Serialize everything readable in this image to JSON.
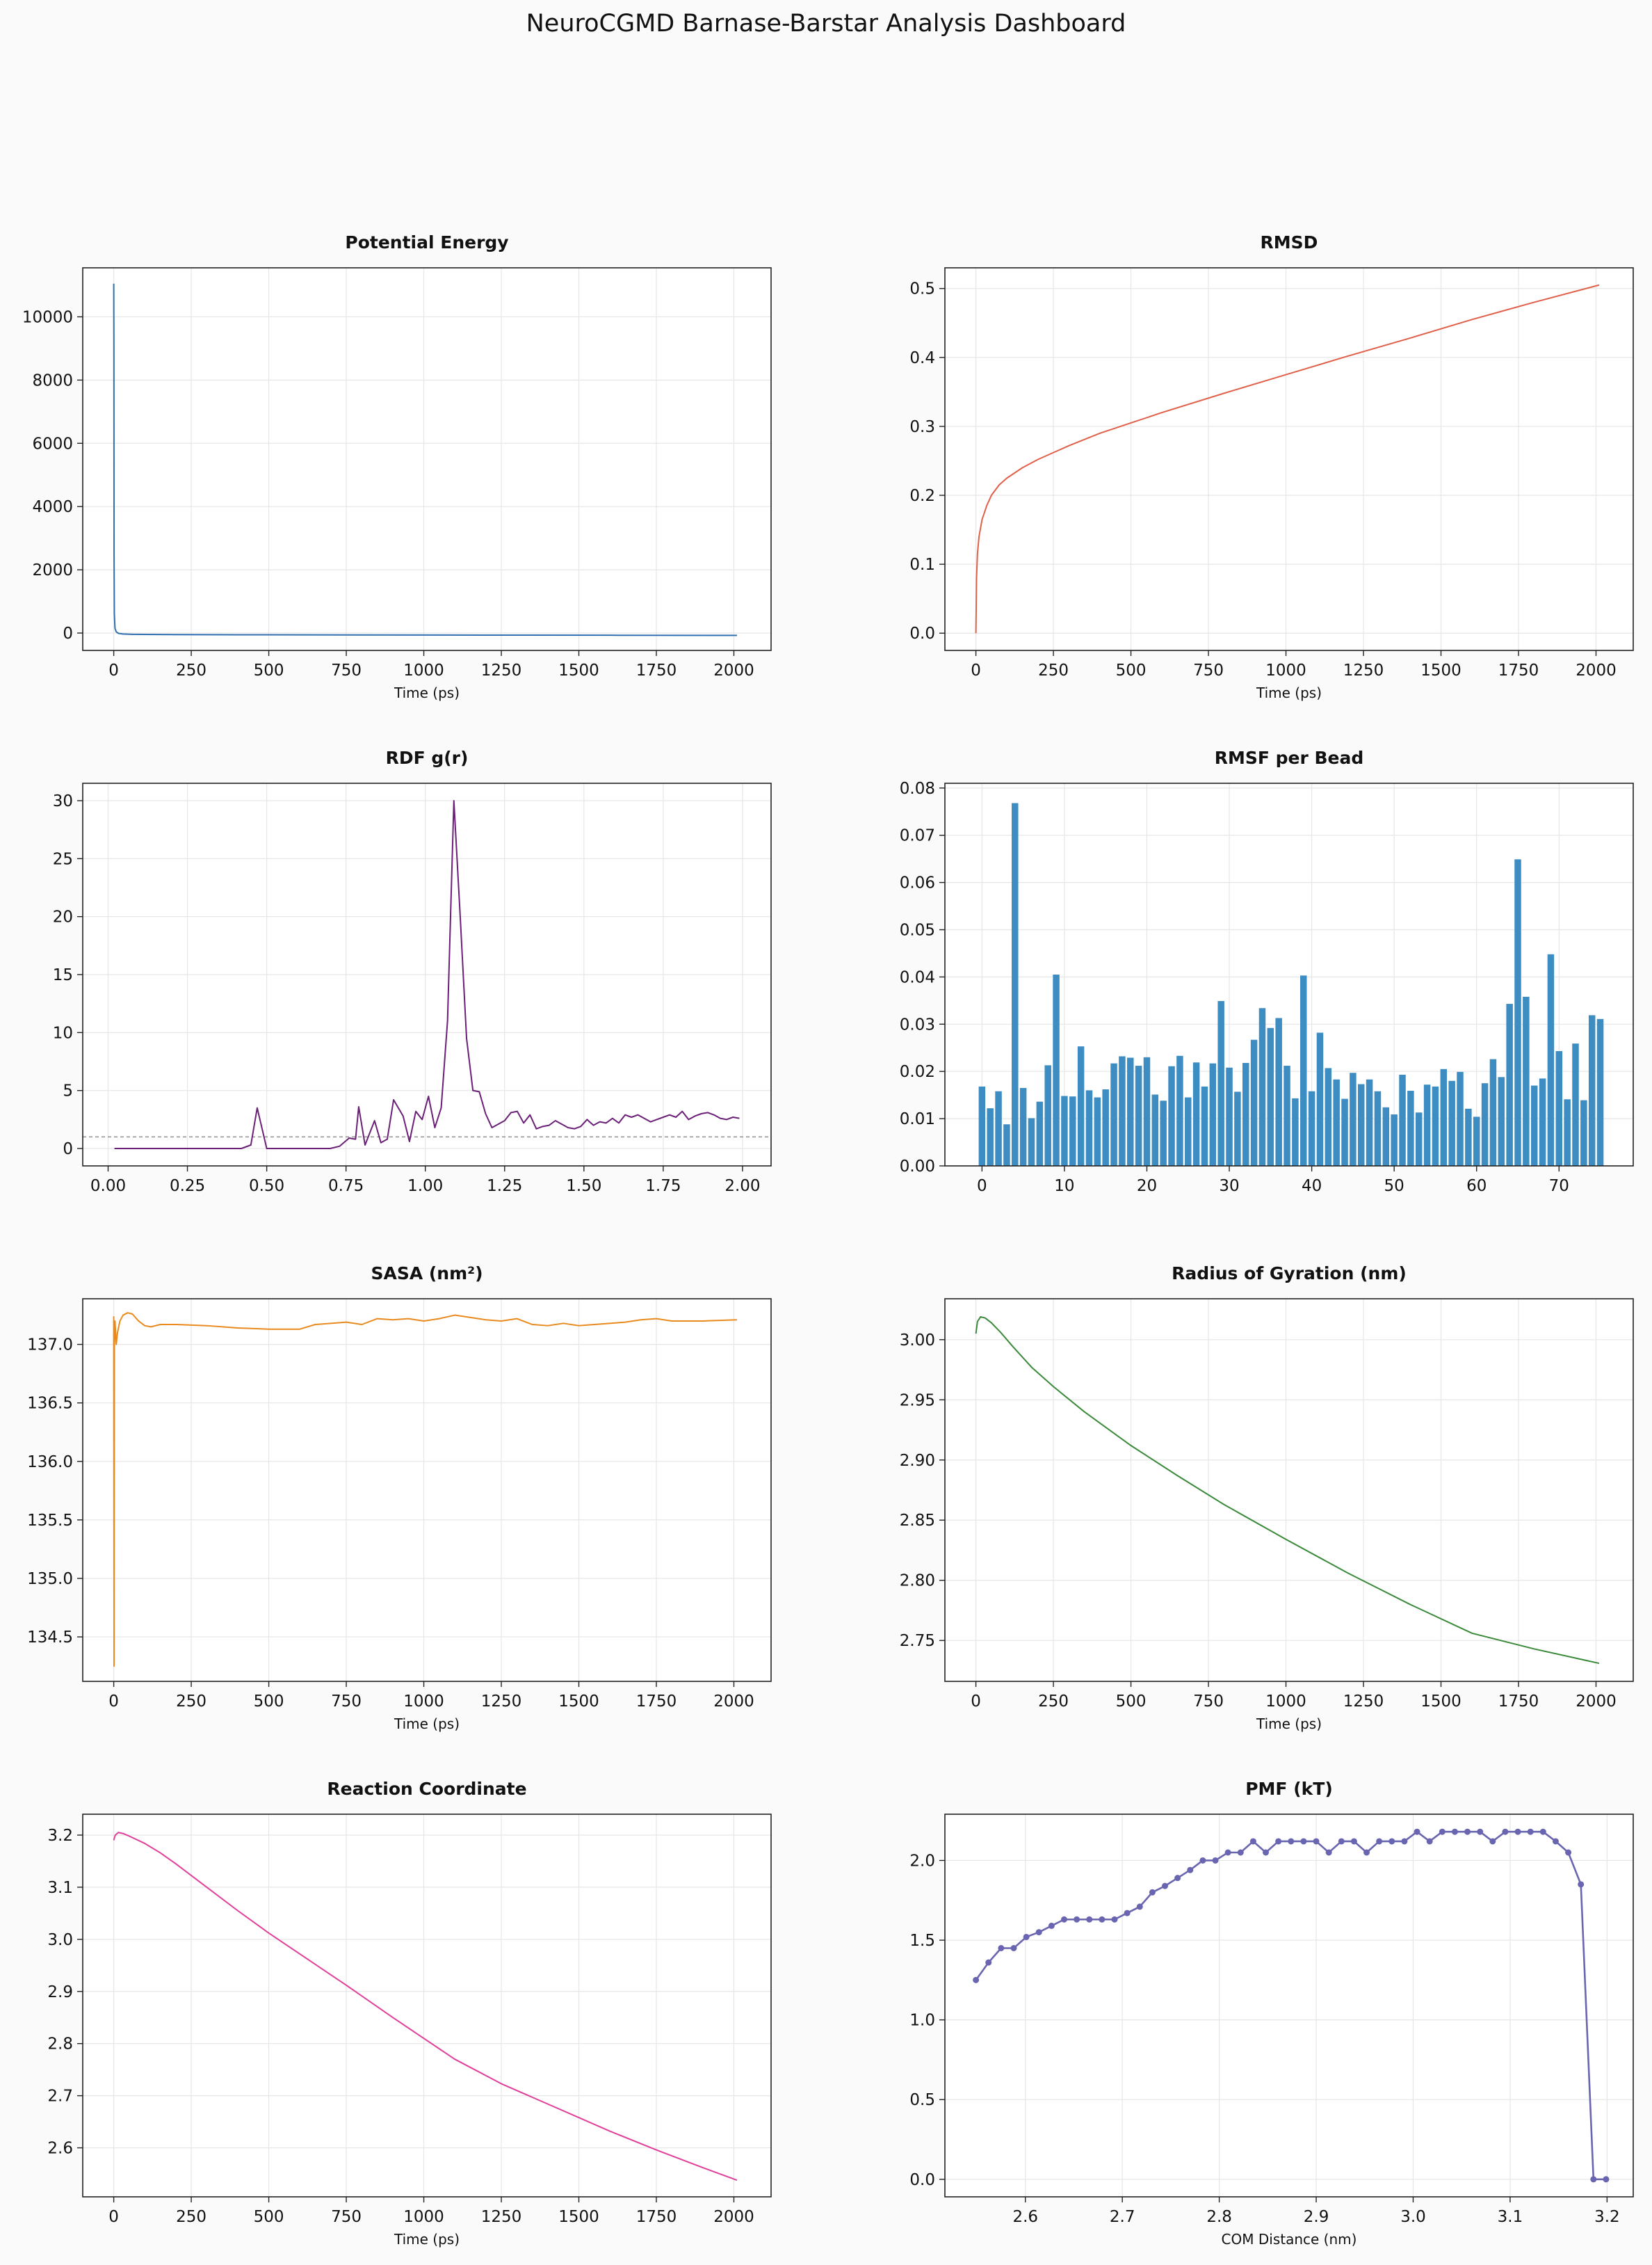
{
  "suptitle": "NeuroCGMD Barnase-Barstar Analysis Dashboard",
  "chart_data": [
    {
      "id": "potential-energy",
      "type": "line",
      "title": "Potential Energy",
      "xlabel": "Time (ps)",
      "ylabel": "",
      "color": "#2f6fb0",
      "xlim": [
        -100,
        2120
      ],
      "ylim": [
        -550,
        11550
      ],
      "xticks": [
        0,
        250,
        500,
        750,
        1000,
        1250,
        1500,
        1750,
        2000
      ],
      "xtick_labels": [
        "0",
        "250",
        "500",
        "750",
        "1000",
        "1250",
        "1500",
        "1750",
        "2000"
      ],
      "yticks": [
        0,
        2000,
        4000,
        6000,
        8000,
        10000
      ],
      "ytick_labels": [
        "0",
        "2000",
        "4000",
        "6000",
        "8000",
        "10000"
      ],
      "x": [
        0,
        0.5,
        1,
        2,
        4,
        8,
        15,
        30,
        60,
        100,
        200,
        400,
        800,
        1200,
        1600,
        2010
      ],
      "y": [
        11050,
        9000,
        2500,
        600,
        150,
        40,
        -10,
        -30,
        -40,
        -45,
        -50,
        -55,
        -60,
        -65,
        -70,
        -75
      ]
    },
    {
      "id": "rmsd",
      "type": "line",
      "title": "RMSD",
      "xlabel": "Time (ps)",
      "ylabel": "",
      "color": "#e0604a",
      "xlim": [
        -100,
        2120
      ],
      "ylim": [
        -0.025,
        0.53
      ],
      "xticks": [
        0,
        250,
        500,
        750,
        1000,
        1250,
        1500,
        1750,
        2000
      ],
      "xtick_labels": [
        "0",
        "250",
        "500",
        "750",
        "1000",
        "1250",
        "1500",
        "1750",
        "2000"
      ],
      "yticks": [
        0.0,
        0.1,
        0.2,
        0.3,
        0.4,
        0.5
      ],
      "ytick_labels": [
        "0.0",
        "0.1",
        "0.2",
        "0.3",
        "0.4",
        "0.5"
      ],
      "x": [
        0,
        2,
        5,
        10,
        20,
        35,
        50,
        75,
        100,
        150,
        200,
        300,
        400,
        500,
        600,
        800,
        1000,
        1200,
        1400,
        1600,
        1800,
        2010
      ],
      "y": [
        0.0,
        0.08,
        0.115,
        0.14,
        0.165,
        0.185,
        0.2,
        0.215,
        0.225,
        0.24,
        0.252,
        0.272,
        0.29,
        0.305,
        0.32,
        0.348,
        0.375,
        0.402,
        0.428,
        0.455,
        0.48,
        0.505
      ]
    },
    {
      "id": "rdf",
      "type": "line",
      "title": "RDF g(r)",
      "xlabel": "",
      "ylabel": "",
      "color": "#6b2077",
      "reference_line": 1.0,
      "xlim": [
        -0.08,
        2.09
      ],
      "ylim": [
        -1.5,
        31.5
      ],
      "xticks": [
        0.0,
        0.25,
        0.5,
        0.75,
        1.0,
        1.25,
        1.5,
        1.75,
        2.0
      ],
      "xtick_labels": [
        "0.00",
        "0.25",
        "0.50",
        "0.75",
        "1.00",
        "1.25",
        "1.50",
        "1.75",
        "2.00"
      ],
      "yticks": [
        0,
        5,
        10,
        15,
        20,
        25,
        30
      ],
      "ytick_labels": [
        "0",
        "5",
        "10",
        "15",
        "20",
        "25",
        "30"
      ],
      "x": [
        0.02,
        0.42,
        0.45,
        0.47,
        0.5,
        0.7,
        0.73,
        0.76,
        0.78,
        0.79,
        0.81,
        0.84,
        0.86,
        0.88,
        0.9,
        0.93,
        0.95,
        0.97,
        0.99,
        1.01,
        1.03,
        1.05,
        1.07,
        1.09,
        1.11,
        1.13,
        1.15,
        1.17,
        1.19,
        1.21,
        1.23,
        1.25,
        1.27,
        1.29,
        1.31,
        1.33,
        1.35,
        1.37,
        1.39,
        1.41,
        1.43,
        1.45,
        1.47,
        1.49,
        1.51,
        1.53,
        1.55,
        1.57,
        1.59,
        1.61,
        1.63,
        1.65,
        1.67,
        1.69,
        1.71,
        1.73,
        1.75,
        1.77,
        1.79,
        1.81,
        1.83,
        1.85,
        1.87,
        1.89,
        1.91,
        1.93,
        1.95,
        1.97,
        1.99
      ],
      "y": [
        0,
        0,
        0.3,
        3.5,
        0,
        0,
        0.2,
        0.9,
        0.8,
        3.6,
        0.3,
        2.4,
        0.5,
        0.8,
        4.2,
        2.8,
        0.6,
        3.2,
        2.5,
        4.5,
        1.8,
        3.5,
        11,
        30,
        20,
        9.5,
        5,
        4.9,
        3,
        1.8,
        2.1,
        2.4,
        3.1,
        3.2,
        2.2,
        2.9,
        1.7,
        1.9,
        2.0,
        2.4,
        2.1,
        1.8,
        1.7,
        1.9,
        2.5,
        2.0,
        2.3,
        2.2,
        2.6,
        2.2,
        2.9,
        2.7,
        2.9,
        2.6,
        2.3,
        2.5,
        2.7,
        2.9,
        2.7,
        3.2,
        2.5,
        2.8,
        3.0,
        3.1,
        2.9,
        2.6,
        2.5,
        2.7,
        2.6
      ]
    },
    {
      "id": "rmsf",
      "type": "bar",
      "title": "RMSF per Bead",
      "xlabel": "",
      "ylabel": "",
      "color": "#3d8cc2",
      "xlim": [
        -4.5,
        79
      ],
      "ylim": [
        0,
        0.081
      ],
      "xticks": [
        0,
        10,
        20,
        30,
        40,
        50,
        60,
        70
      ],
      "xtick_labels": [
        "0",
        "10",
        "20",
        "30",
        "40",
        "50",
        "60",
        "70"
      ],
      "yticks": [
        0.0,
        0.01,
        0.02,
        0.03,
        0.04,
        0.05,
        0.06,
        0.07,
        0.08
      ],
      "ytick_labels": [
        "0.00",
        "0.01",
        "0.02",
        "0.03",
        "0.04",
        "0.05",
        "0.06",
        "0.07",
        "0.08"
      ],
      "categories": [
        0,
        1,
        2,
        3,
        4,
        5,
        6,
        7,
        8,
        9,
        10,
        11,
        12,
        13,
        14,
        15,
        16,
        17,
        18,
        19,
        20,
        21,
        22,
        23,
        24,
        25,
        26,
        27,
        28,
        29,
        30,
        31,
        32,
        33,
        34,
        35,
        36,
        37,
        38,
        39,
        40,
        41,
        42,
        43,
        44,
        45,
        46,
        47,
        48,
        49,
        50,
        51,
        52,
        53,
        54,
        55,
        56,
        57,
        58,
        59,
        60,
        61,
        62,
        63,
        64,
        65,
        66,
        67,
        68,
        69,
        70,
        71,
        72,
        73,
        74,
        75
      ],
      "values": [
        0.0168,
        0.0122,
        0.0158,
        0.0088,
        0.0768,
        0.0165,
        0.0101,
        0.0136,
        0.0213,
        0.0405,
        0.0148,
        0.0147,
        0.0253,
        0.016,
        0.0145,
        0.0162,
        0.0217,
        0.0232,
        0.0229,
        0.0212,
        0.023,
        0.0151,
        0.0138,
        0.0211,
        0.0233,
        0.0145,
        0.0219,
        0.0168,
        0.0217,
        0.0349,
        0.0208,
        0.0157,
        0.0218,
        0.0267,
        0.0334,
        0.0292,
        0.0313,
        0.0212,
        0.0143,
        0.0403,
        0.0158,
        0.0282,
        0.0207,
        0.0183,
        0.0142,
        0.0197,
        0.0173,
        0.0183,
        0.0158,
        0.0124,
        0.0109,
        0.0193,
        0.0159,
        0.0113,
        0.0172,
        0.0168,
        0.0205,
        0.018,
        0.0199,
        0.0121,
        0.0104,
        0.0175,
        0.0226,
        0.0188,
        0.0343,
        0.0649,
        0.0358,
        0.017,
        0.0185,
        0.0448,
        0.0243,
        0.0141,
        0.0259,
        0.0139,
        0.0319,
        0.0311
      ]
    },
    {
      "id": "sasa",
      "type": "line",
      "title": "SASA (nm²)",
      "xlabel": "Time (ps)",
      "ylabel": "",
      "color": "#e88a1e",
      "xlim": [
        -100,
        2120
      ],
      "ylim": [
        134.12,
        137.39
      ],
      "xticks": [
        0,
        250,
        500,
        750,
        1000,
        1250,
        1500,
        1750,
        2000
      ],
      "xtick_labels": [
        "0",
        "250",
        "500",
        "750",
        "1000",
        "1250",
        "1500",
        "1750",
        "2000"
      ],
      "yticks": [
        134.5,
        135.0,
        135.5,
        136.0,
        136.5,
        137.0
      ],
      "ytick_labels": [
        "134.5",
        "135.0",
        "135.5",
        "136.0",
        "136.5",
        "137.0"
      ],
      "x": [
        0,
        1,
        2,
        4,
        8,
        12,
        20,
        30,
        45,
        60,
        80,
        100,
        120,
        150,
        200,
        300,
        400,
        500,
        600,
        650,
        700,
        750,
        800,
        850,
        900,
        950,
        1000,
        1050,
        1100,
        1150,
        1200,
        1250,
        1300,
        1350,
        1400,
        1450,
        1500,
        1550,
        1600,
        1650,
        1700,
        1750,
        1800,
        1900,
        2010
      ],
      "y": [
        137.24,
        134.25,
        137.0,
        137.2,
        137.0,
        137.1,
        137.2,
        137.25,
        137.27,
        137.26,
        137.2,
        137.16,
        137.15,
        137.17,
        137.17,
        137.16,
        137.14,
        137.13,
        137.13,
        137.17,
        137.18,
        137.19,
        137.17,
        137.22,
        137.21,
        137.22,
        137.2,
        137.22,
        137.25,
        137.23,
        137.21,
        137.2,
        137.22,
        137.17,
        137.16,
        137.18,
        137.16,
        137.17,
        137.18,
        137.19,
        137.21,
        137.22,
        137.2,
        137.2,
        137.21
      ]
    },
    {
      "id": "radius-of-gyration",
      "type": "line",
      "title": "Radius of Gyration (nm)",
      "xlabel": "Time (ps)",
      "ylabel": "",
      "color": "#3a8a3a",
      "xlim": [
        -100,
        2120
      ],
      "ylim": [
        2.716,
        3.034
      ],
      "xticks": [
        0,
        250,
        500,
        750,
        1000,
        1250,
        1500,
        1750,
        2000
      ],
      "xtick_labels": [
        "0",
        "250",
        "500",
        "750",
        "1000",
        "1250",
        "1500",
        "1750",
        "2000"
      ],
      "yticks": [
        2.75,
        2.8,
        2.85,
        2.9,
        2.95,
        3.0
      ],
      "ytick_labels": [
        "2.75",
        "2.80",
        "2.85",
        "2.90",
        "2.95",
        "3.00"
      ],
      "x": [
        0,
        5,
        15,
        30,
        50,
        80,
        120,
        180,
        250,
        350,
        500,
        650,
        800,
        1000,
        1200,
        1400,
        1600,
        1800,
        2010
      ],
      "y": [
        3.005,
        3.015,
        3.019,
        3.018,
        3.014,
        3.006,
        2.994,
        2.977,
        2.961,
        2.94,
        2.912,
        2.887,
        2.863,
        2.834,
        2.806,
        2.78,
        2.756,
        2.743,
        2.731
      ]
    },
    {
      "id": "reaction-coordinate",
      "type": "line",
      "title": "Reaction Coordinate",
      "xlabel": "Time (ps)",
      "ylabel": "",
      "color": "#e0409a",
      "xlim": [
        -100,
        2120
      ],
      "ylim": [
        2.506,
        3.24
      ],
      "xticks": [
        0,
        250,
        500,
        750,
        1000,
        1250,
        1500,
        1750,
        2000
      ],
      "xtick_labels": [
        "0",
        "250",
        "500",
        "750",
        "1000",
        "1250",
        "1500",
        "1750",
        "2000"
      ],
      "yticks": [
        2.6,
        2.7,
        2.8,
        2.9,
        3.0,
        3.1,
        3.2
      ],
      "ytick_labels": [
        "2.6",
        "2.7",
        "2.8",
        "2.9",
        "3.0",
        "3.1",
        "3.2"
      ],
      "x": [
        0,
        5,
        15,
        30,
        50,
        100,
        150,
        200,
        300,
        400,
        500,
        600,
        750,
        900,
        1000,
        1100,
        1250,
        1400,
        1500,
        1600,
        1750,
        1900,
        2010
      ],
      "y": [
        3.19,
        3.2,
        3.205,
        3.203,
        3.198,
        3.184,
        3.166,
        3.145,
        3.1,
        3.055,
        3.012,
        2.972,
        2.912,
        2.85,
        2.81,
        2.77,
        2.723,
        2.684,
        2.658,
        2.632,
        2.596,
        2.562,
        2.538
      ]
    },
    {
      "id": "pmf",
      "type": "line",
      "title": "PMF (kT)",
      "xlabel": "COM Distance (nm)",
      "ylabel": "",
      "color": "#6a65b0",
      "markers": true,
      "xlim": [
        2.517,
        3.227
      ],
      "ylim": [
        -0.11,
        2.29
      ],
      "xticks": [
        2.6,
        2.7,
        2.8,
        2.9,
        3.0,
        3.1,
        3.2
      ],
      "xtick_labels": [
        "2.6",
        "2.7",
        "2.8",
        "2.9",
        "3.0",
        "3.1",
        "3.2"
      ],
      "yticks": [
        0.0,
        0.5,
        1.0,
        1.5,
        2.0
      ],
      "ytick_labels": [
        "0.0",
        "0.5",
        "1.0",
        "1.5",
        "2.0"
      ],
      "x": [
        2.549,
        2.562,
        2.575,
        2.588,
        2.601,
        2.614,
        2.627,
        2.64,
        2.653,
        2.666,
        2.679,
        2.692,
        2.705,
        2.718,
        2.731,
        2.744,
        2.757,
        2.77,
        2.783,
        2.796,
        2.809,
        2.822,
        2.835,
        2.848,
        2.861,
        2.874,
        2.887,
        2.9,
        2.913,
        2.926,
        2.939,
        2.952,
        2.965,
        2.978,
        2.991,
        3.004,
        3.017,
        3.03,
        3.043,
        3.056,
        3.069,
        3.082,
        3.095,
        3.108,
        3.121,
        3.134,
        3.147,
        3.16,
        3.173,
        3.186,
        3.199
      ],
      "y": [
        1.25,
        1.36,
        1.45,
        1.45,
        1.52,
        1.55,
        1.59,
        1.63,
        1.63,
        1.63,
        1.63,
        1.63,
        1.67,
        1.71,
        1.8,
        1.84,
        1.89,
        1.94,
        2.0,
        2.0,
        2.05,
        2.05,
        2.12,
        2.05,
        2.12,
        2.12,
        2.12,
        2.12,
        2.05,
        2.12,
        2.12,
        2.05,
        2.12,
        2.12,
        2.12,
        2.18,
        2.12,
        2.18,
        2.18,
        2.18,
        2.18,
        2.12,
        2.18,
        2.18,
        2.18,
        2.18,
        2.12,
        2.05,
        1.85,
        0.0,
        0.0
      ]
    }
  ]
}
